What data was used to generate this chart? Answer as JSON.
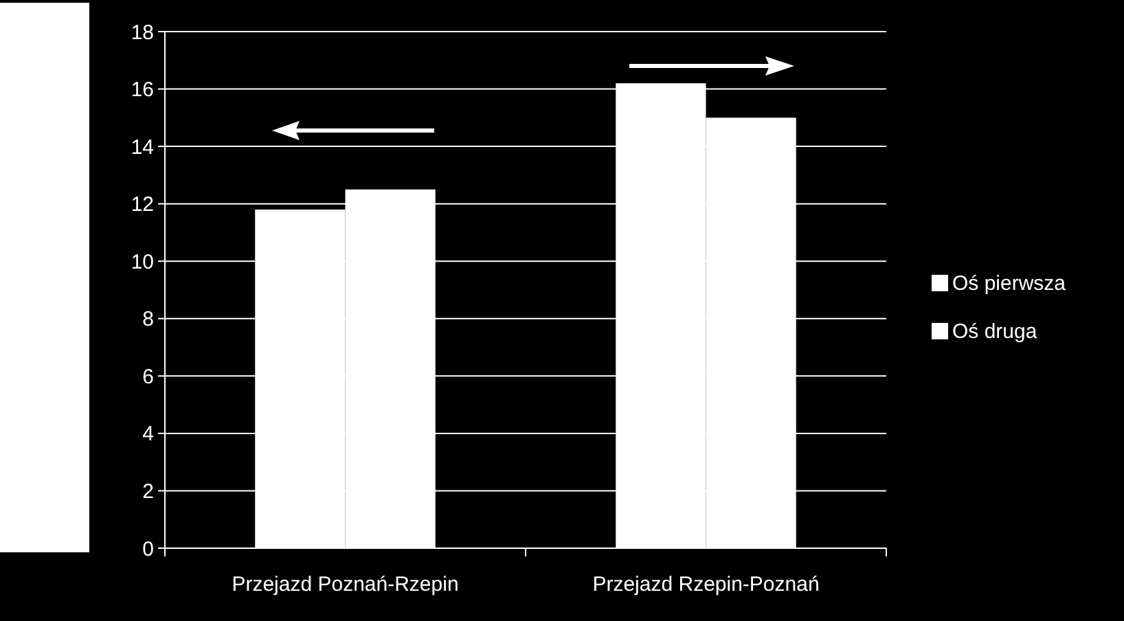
{
  "chart_data": {
    "type": "bar",
    "categories": [
      "Przejazd Poznań-Rzepin",
      "Przejazd Rzepin-Poznań"
    ],
    "series": [
      {
        "name": "Oś pierwsza",
        "color": "#ffffff",
        "values": [
          11.8,
          16.2
        ]
      },
      {
        "name": "Oś druga",
        "color": "#ffffff",
        "values": [
          12.5,
          15.0
        ]
      }
    ],
    "ylim": [
      0,
      18
    ],
    "yticks": [
      0,
      2,
      4,
      6,
      8,
      10,
      12,
      14,
      16,
      18
    ],
    "grid": "y",
    "legend": "right"
  }
}
